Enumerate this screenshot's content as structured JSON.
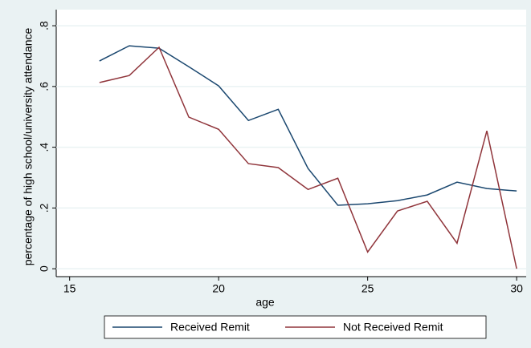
{
  "chart_data": {
    "type": "line",
    "x_label": "age",
    "y_label": "percentage of high school/university attendance",
    "x": [
      16,
      17,
      18,
      19,
      20,
      21,
      22,
      23,
      24,
      25,
      26,
      27,
      28,
      29,
      30
    ],
    "series": [
      {
        "name": "Received Remit",
        "color": "#1a476f",
        "values": [
          0.684,
          0.734,
          0.726,
          0.665,
          0.602,
          0.488,
          0.525,
          0.33,
          0.209,
          0.214,
          0.224,
          0.243,
          0.285,
          0.264,
          0.256
        ]
      },
      {
        "name": "Not Received Remit",
        "color": "#90353b",
        "values": [
          0.613,
          0.636,
          0.729,
          0.499,
          0.459,
          0.346,
          0.333,
          0.261,
          0.298,
          0.055,
          0.19,
          0.222,
          0.084,
          0.454,
          0
        ]
      }
    ],
    "xlim": [
      14.55,
      30.32
    ],
    "xticks": [
      15,
      20,
      25,
      30
    ],
    "ylim": [
      -0.026,
      0.853
    ],
    "yticks": [
      0,
      {
        "value": 0.2,
        "label": ".2"
      },
      {
        "value": 0.4,
        "label": ".4"
      },
      {
        "value": 0.6,
        "label": ".6"
      },
      {
        "value": 0.8,
        "label": ".8"
      }
    ],
    "grid": true,
    "legend": "bottom"
  }
}
